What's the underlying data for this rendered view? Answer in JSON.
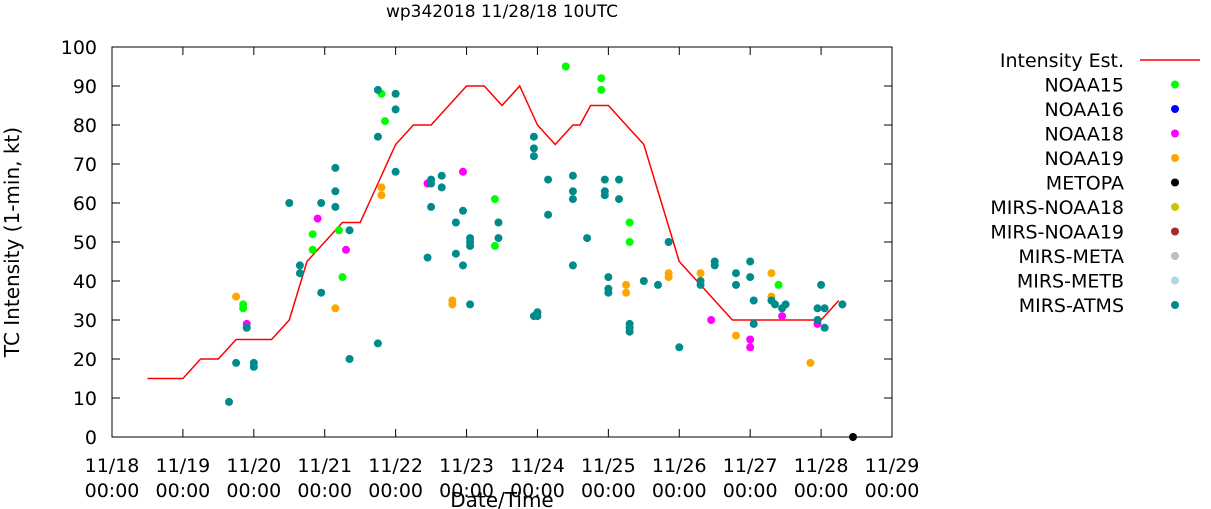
{
  "chart_data": {
    "type": "scatter",
    "title": "wp342018 11/28/18 10UTC",
    "xlabel": "Date/Time",
    "ylabel": "TC Intensity (1-min, kt)",
    "ylim": [
      0,
      100
    ],
    "xlim": [
      0,
      11
    ],
    "yticks": [
      0,
      10,
      20,
      30,
      40,
      50,
      60,
      70,
      80,
      90,
      100
    ],
    "xticks": [
      {
        "x": 0,
        "date": "11/18",
        "time": "00:00"
      },
      {
        "x": 1,
        "date": "11/19",
        "time": "00:00"
      },
      {
        "x": 2,
        "date": "11/20",
        "time": "00:00"
      },
      {
        "x": 3,
        "date": "11/21",
        "time": "00:00"
      },
      {
        "x": 4,
        "date": "11/22",
        "time": "00:00"
      },
      {
        "x": 5,
        "date": "11/23",
        "time": "00:00"
      },
      {
        "x": 6,
        "date": "11/24",
        "time": "00:00"
      },
      {
        "x": 7,
        "date": "11/25",
        "time": "00:00"
      },
      {
        "x": 8,
        "date": "11/26",
        "time": "00:00"
      },
      {
        "x": 9,
        "date": "11/27",
        "time": "00:00"
      },
      {
        "x": 10,
        "date": "11/28",
        "time": "00:00"
      },
      {
        "x": 11,
        "date": "11/29",
        "time": "00:00"
      }
    ],
    "x_units": "days since 11/18 00:00",
    "legend_position": "outside-right",
    "series": [
      {
        "name": "Intensity Est.",
        "kind": "line",
        "color": "#ff0000",
        "x": [
          0.5,
          1.0,
          1.25,
          1.5,
          1.75,
          2.0,
          2.25,
          2.5,
          2.75,
          3.0,
          3.25,
          3.5,
          3.75,
          4.0,
          4.25,
          4.5,
          4.75,
          5.0,
          5.25,
          5.5,
          5.75,
          6.0,
          6.25,
          6.5,
          6.6,
          6.75,
          7.0,
          7.25,
          7.5,
          7.75,
          8.0,
          8.25,
          8.5,
          8.75,
          9.0,
          9.25,
          9.5,
          9.75,
          10.0,
          10.25
        ],
        "y": [
          15,
          15,
          20,
          20,
          25,
          25,
          25,
          30,
          45,
          50,
          55,
          55,
          65,
          75,
          80,
          80,
          85,
          90,
          90,
          85,
          90,
          80,
          75,
          80,
          80,
          85,
          85,
          80,
          75,
          60,
          45,
          40,
          35,
          30,
          30,
          30,
          30,
          30,
          30,
          35
        ]
      },
      {
        "name": "NOAA15",
        "kind": "points",
        "color": "#00ff00",
        "x": [
          1.85,
          1.85,
          2.83,
          2.83,
          3.2,
          3.25,
          3.8,
          3.85,
          5.4,
          5.4,
          6.4,
          6.9,
          6.9,
          7.3,
          7.3,
          9.4
        ],
        "y": [
          34,
          33,
          52,
          48,
          53,
          41,
          88,
          81,
          61,
          49,
          95,
          92,
          89,
          55,
          50,
          39
        ]
      },
      {
        "name": "NOAA16",
        "kind": "points",
        "color": "#0000ff",
        "x": [],
        "y": []
      },
      {
        "name": "NOAA18",
        "kind": "points",
        "color": "#ff00ff",
        "x": [
          1.9,
          2.9,
          3.3,
          4.45,
          4.95,
          8.45,
          9.0,
          9.0,
          9.45,
          9.95
        ],
        "y": [
          29,
          56,
          48,
          65,
          68,
          30,
          25,
          23,
          31,
          29
        ]
      },
      {
        "name": "NOAA19",
        "kind": "points",
        "color": "#ffa500",
        "x": [
          1.75,
          3.15,
          3.8,
          3.8,
          4.8,
          4.8,
          7.25,
          7.25,
          7.85,
          7.85,
          8.3,
          8.8,
          9.3,
          9.3,
          9.85
        ],
        "y": [
          36,
          33,
          64,
          62,
          35,
          34,
          39,
          37,
          42,
          41,
          42,
          26,
          42,
          36,
          19
        ]
      },
      {
        "name": "METOPA",
        "kind": "points",
        "color": "#000000",
        "x": [
          10.45
        ],
        "y": [
          0
        ]
      },
      {
        "name": "MIRS-NOAA18",
        "kind": "points",
        "color": "#c8c800",
        "x": [],
        "y": []
      },
      {
        "name": "MIRS-NOAA19",
        "kind": "points",
        "color": "#a52a2a",
        "x": [],
        "y": []
      },
      {
        "name": "MIRS-META",
        "kind": "points",
        "color": "#bebebe",
        "x": [],
        "y": []
      },
      {
        "name": "MIRS-METB",
        "kind": "points",
        "color": "#add8e6",
        "x": [],
        "y": []
      },
      {
        "name": "MIRS-ATMS",
        "kind": "points",
        "color": "#008b8b",
        "x": [
          1.65,
          1.75,
          1.9,
          2.0,
          2.0,
          2.5,
          2.65,
          2.65,
          2.95,
          2.95,
          3.15,
          3.15,
          3.15,
          3.35,
          3.35,
          3.75,
          3.75,
          3.75,
          4.0,
          4.0,
          4.0,
          4.45,
          4.5,
          4.5,
          4.5,
          4.65,
          4.65,
          4.85,
          4.85,
          4.95,
          4.95,
          5.05,
          5.05,
          5.05,
          5.05,
          5.45,
          5.45,
          5.95,
          5.95,
          5.95,
          5.95,
          6.0,
          6.0,
          6.15,
          6.15,
          6.5,
          6.5,
          6.5,
          6.5,
          6.7,
          6.95,
          6.95,
          6.95,
          7.0,
          7.0,
          7.0,
          7.15,
          7.15,
          7.3,
          7.3,
          7.3,
          7.5,
          7.7,
          7.85,
          8.0,
          8.3,
          8.3,
          8.5,
          8.5,
          8.8,
          8.8,
          9.0,
          9.0,
          9.05,
          9.05,
          9.3,
          9.35,
          9.45,
          9.5,
          9.95,
          9.95,
          10.0,
          10.05,
          10.05,
          10.3
        ],
        "y": [
          9,
          19,
          28,
          19,
          18,
          60,
          44,
          42,
          60,
          37,
          69,
          63,
          59,
          53,
          20,
          89,
          77,
          24,
          88,
          84,
          68,
          46,
          66,
          65,
          59,
          67,
          64,
          47,
          55,
          58,
          44,
          51,
          50,
          49,
          34,
          55,
          51,
          74,
          72,
          77,
          31,
          32,
          31,
          66,
          57,
          67,
          63,
          61,
          44,
          51,
          66,
          63,
          62,
          41,
          38,
          37,
          66,
          61,
          29,
          28,
          27,
          40,
          39,
          50,
          23,
          40,
          39,
          45,
          44,
          42,
          39,
          45,
          41,
          35,
          29,
          35,
          34,
          33,
          34,
          33,
          30,
          39,
          33,
          28,
          34
        ]
      }
    ]
  }
}
